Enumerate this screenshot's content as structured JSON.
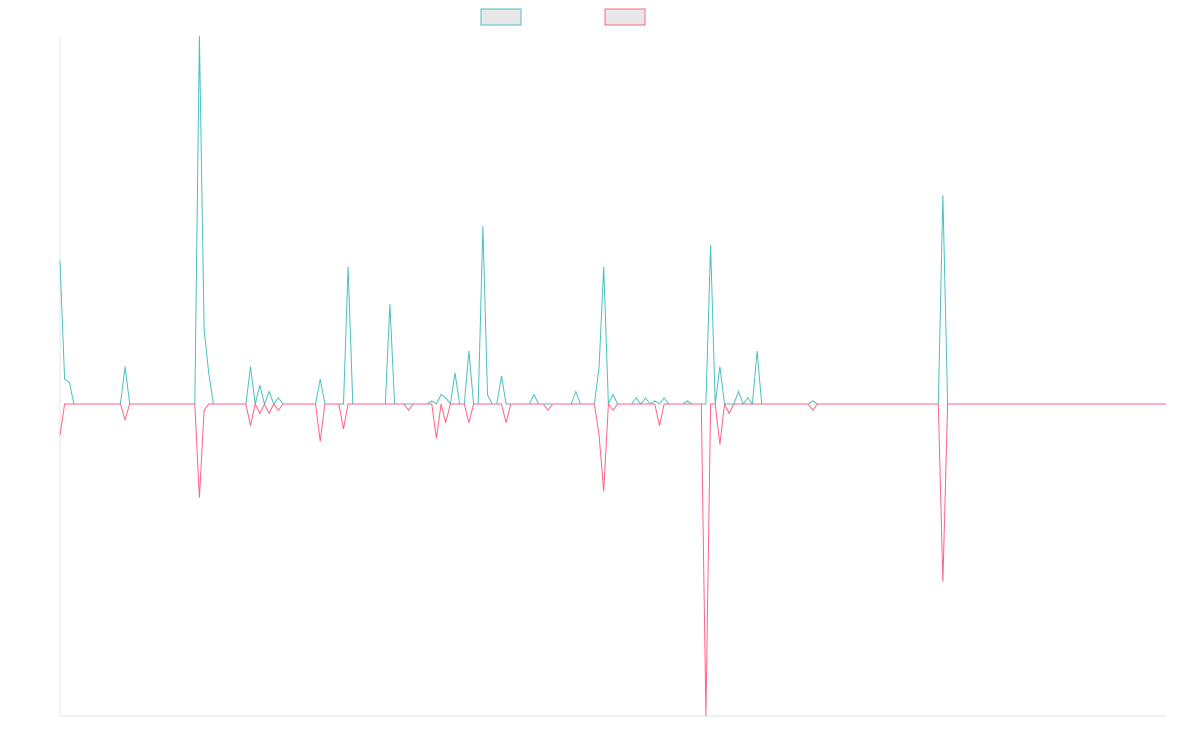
{
  "chart_data": {
    "type": "line",
    "title": "",
    "xlabel": "",
    "ylabel": "",
    "grid": false,
    "legend_position": "top-center",
    "ylim": [
      -1.0,
      1.0
    ],
    "x_count": 239,
    "series": [
      {
        "name": "",
        "color": "#4bc0c0",
        "fill": "#e8e8e8",
        "points": [
          [
            0,
            0.46
          ],
          [
            1,
            0.08
          ],
          [
            2,
            0.07
          ],
          [
            3,
            0.0
          ],
          [
            13,
            0.0
          ],
          [
            14,
            0.12
          ],
          [
            15,
            0.0
          ],
          [
            29,
            0.0
          ],
          [
            30,
            1.18
          ],
          [
            31,
            0.24
          ],
          [
            32,
            0.1
          ],
          [
            33,
            0.0
          ],
          [
            40,
            0.0
          ],
          [
            41,
            0.12
          ],
          [
            42,
            0.0
          ],
          [
            43,
            0.06
          ],
          [
            44,
            0.0
          ],
          [
            45,
            0.04
          ],
          [
            46,
            0.0
          ],
          [
            47,
            0.02
          ],
          [
            48,
            0.0
          ],
          [
            55,
            0.0
          ],
          [
            56,
            0.08
          ],
          [
            57,
            0.0
          ],
          [
            61,
            0.0
          ],
          [
            62,
            0.44
          ],
          [
            63,
            0.0
          ],
          [
            70,
            0.0
          ],
          [
            71,
            0.32
          ],
          [
            72,
            0.0
          ],
          [
            79,
            0.0
          ],
          [
            80,
            0.01
          ],
          [
            81,
            0.0
          ],
          [
            82,
            0.03
          ],
          [
            83,
            0.02
          ],
          [
            84,
            0.0
          ],
          [
            85,
            0.1
          ],
          [
            86,
            0.0
          ],
          [
            87,
            0.0
          ],
          [
            88,
            0.17
          ],
          [
            89,
            0.0
          ],
          [
            90,
            0.0
          ],
          [
            91,
            0.57
          ],
          [
            92,
            0.03
          ],
          [
            93,
            0.0
          ],
          [
            94,
            0.0
          ],
          [
            95,
            0.09
          ],
          [
            96,
            0.0
          ],
          [
            101,
            0.0
          ],
          [
            102,
            0.03
          ],
          [
            103,
            0.0
          ],
          [
            110,
            0.0
          ],
          [
            111,
            0.04
          ],
          [
            112,
            0.0
          ],
          [
            115,
            0.0
          ],
          [
            116,
            0.12
          ],
          [
            117,
            0.44
          ],
          [
            118,
            0.0
          ],
          [
            119,
            0.03
          ],
          [
            120,
            0.0
          ],
          [
            123,
            0.0
          ],
          [
            124,
            0.02
          ],
          [
            125,
            0.0
          ],
          [
            126,
            0.02
          ],
          [
            127,
            0.0
          ],
          [
            128,
            0.01
          ],
          [
            129,
            0.0
          ],
          [
            130,
            0.02
          ],
          [
            131,
            0.0
          ],
          [
            134,
            0.0
          ],
          [
            135,
            0.01
          ],
          [
            136,
            0.0
          ],
          [
            139,
            0.0
          ],
          [
            140,
            0.51
          ],
          [
            141,
            0.0
          ],
          [
            142,
            0.12
          ],
          [
            143,
            0.0
          ],
          [
            145,
            0.0
          ],
          [
            146,
            0.04
          ],
          [
            147,
            0.0
          ],
          [
            148,
            0.02
          ],
          [
            149,
            0.0
          ],
          [
            150,
            0.17
          ],
          [
            151,
            0.0
          ],
          [
            161,
            0.0
          ],
          [
            162,
            0.01
          ],
          [
            163,
            0.0
          ],
          [
            189,
            0.0
          ],
          [
            190,
            0.67
          ],
          [
            191,
            0.0
          ],
          [
            238,
            0.0
          ]
        ]
      },
      {
        "name": "",
        "color": "#ff6384",
        "fill": "#e8e8e8",
        "points": [
          [
            0,
            -0.1
          ],
          [
            1,
            0.0
          ],
          [
            2,
            0.0
          ],
          [
            13,
            0.0
          ],
          [
            14,
            -0.05
          ],
          [
            15,
            0.0
          ],
          [
            29,
            0.0
          ],
          [
            30,
            -0.3
          ],
          [
            31,
            -0.02
          ],
          [
            32,
            0.0
          ],
          [
            40,
            0.0
          ],
          [
            41,
            -0.07
          ],
          [
            42,
            0.0
          ],
          [
            43,
            -0.03
          ],
          [
            44,
            0.0
          ],
          [
            45,
            -0.03
          ],
          [
            46,
            0.0
          ],
          [
            47,
            -0.02
          ],
          [
            48,
            0.0
          ],
          [
            55,
            0.0
          ],
          [
            56,
            -0.12
          ],
          [
            57,
            0.0
          ],
          [
            60,
            0.0
          ],
          [
            61,
            -0.08
          ],
          [
            62,
            0.0
          ],
          [
            74,
            0.0
          ],
          [
            75,
            -0.02
          ],
          [
            76,
            0.0
          ],
          [
            80,
            0.0
          ],
          [
            81,
            -0.11
          ],
          [
            82,
            0.0
          ],
          [
            83,
            -0.06
          ],
          [
            84,
            0.0
          ],
          [
            87,
            0.0
          ],
          [
            88,
            -0.06
          ],
          [
            89,
            0.0
          ],
          [
            95,
            0.0
          ],
          [
            96,
            -0.06
          ],
          [
            97,
            0.0
          ],
          [
            104,
            0.0
          ],
          [
            105,
            -0.02
          ],
          [
            106,
            0.0
          ],
          [
            115,
            0.0
          ],
          [
            116,
            -0.1
          ],
          [
            117,
            -0.28
          ],
          [
            118,
            0.0
          ],
          [
            119,
            -0.02
          ],
          [
            120,
            0.0
          ],
          [
            128,
            0.0
          ],
          [
            129,
            -0.07
          ],
          [
            130,
            0.0
          ],
          [
            138,
            0.0
          ],
          [
            139,
            -1.0
          ],
          [
            140,
            0.0
          ],
          [
            141,
            0.0
          ],
          [
            142,
            -0.13
          ],
          [
            143,
            0.0
          ],
          [
            144,
            -0.03
          ],
          [
            145,
            0.0
          ],
          [
            161,
            0.0
          ],
          [
            162,
            -0.02
          ],
          [
            163,
            0.0
          ],
          [
            189,
            0.0
          ],
          [
            190,
            -0.57
          ],
          [
            191,
            0.0
          ],
          [
            238,
            0.0
          ]
        ]
      }
    ]
  }
}
